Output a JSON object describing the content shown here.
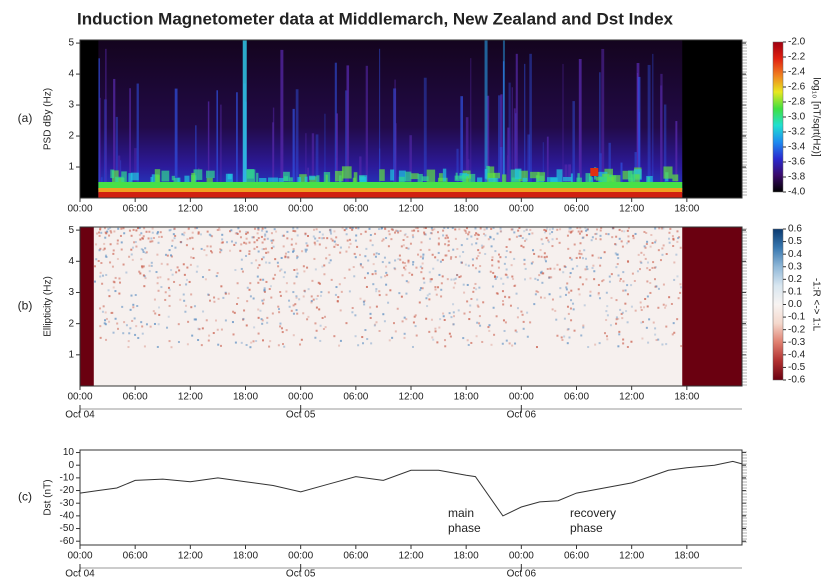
{
  "title": "Induction Magnetometer data at Middlemarch, New Zealand and Dst Index",
  "chart_data": [
    {
      "type": "spectrogram",
      "panel_label": "(a)",
      "ylabel": "PSD dBy (Hz)",
      "ylim": [
        0,
        5.1
      ],
      "yticks": [
        1,
        2,
        3,
        4,
        5
      ],
      "xlim": [
        0,
        72
      ],
      "xticks": [
        {
          "value": 0,
          "label": "00:00"
        },
        {
          "value": 6,
          "label": "06:00"
        },
        {
          "value": 12,
          "label": "12:00"
        },
        {
          "value": 18,
          "label": "18:00"
        },
        {
          "value": 24,
          "label": "00:00"
        },
        {
          "value": 30,
          "label": "06:00"
        },
        {
          "value": 36,
          "label": "12:00"
        },
        {
          "value": 42,
          "label": "18:00"
        },
        {
          "value": 48,
          "label": "00:00"
        },
        {
          "value": 54,
          "label": "06:00"
        },
        {
          "value": 60,
          "label": "12:00"
        },
        {
          "value": 66,
          "label": "18:00"
        }
      ],
      "colorbar": {
        "label": "log₁₀ [nT/sqrt(Hz)]",
        "lim": [
          -4,
          -2
        ],
        "colors": [
          "#000000",
          "#3a0a6a",
          "#2a2ad0",
          "#1e8cf0",
          "#20e0d0",
          "#40e040",
          "#e8e820",
          "#f08020",
          "#e02010",
          "#a00010"
        ],
        "ticks": [
          {
            "value": -2,
            "label": "-2.0"
          },
          -2.2,
          -2.4,
          -2.6,
          -2.8,
          {
            "value": -3,
            "label": "-3.0"
          },
          -3.2,
          -3.4,
          -3.6,
          -3.8,
          {
            "value": -4,
            "label": "-4.0"
          }
        ]
      }
    },
    {
      "type": "spectrogram",
      "panel_label": "(b)",
      "ylabel": "Ellipticity (Hz)",
      "ylim": [
        0,
        5.1
      ],
      "yticks": [
        1,
        2,
        3,
        4,
        5
      ],
      "xlim": [
        0,
        72
      ],
      "xticks": [
        {
          "value": 0,
          "label": "00:00"
        },
        {
          "value": 6,
          "label": "06:00"
        },
        {
          "value": 12,
          "label": "12:00"
        },
        {
          "value": 18,
          "label": "18:00"
        },
        {
          "value": 24,
          "label": "00:00"
        },
        {
          "value": 30,
          "label": "06:00"
        },
        {
          "value": 36,
          "label": "12:00"
        },
        {
          "value": 42,
          "label": "18:00"
        },
        {
          "value": 48,
          "label": "00:00"
        },
        {
          "value": 54,
          "label": "06:00"
        },
        {
          "value": 60,
          "label": "12:00"
        },
        {
          "value": 66,
          "label": "18:00"
        }
      ],
      "date_ticks": [
        {
          "value": 0,
          "label": "Oct 04"
        },
        {
          "value": 24,
          "label": "Oct 05"
        },
        {
          "value": 48,
          "label": "Oct 06"
        }
      ],
      "colorbar": {
        "label": "-1:R <-> 1:L",
        "lim": [
          -0.6,
          0.6
        ],
        "colors": [
          "#6a0010",
          "#b03030",
          "#e08070",
          "#f4d8cc",
          "#f8f4f2",
          "#d8e6f0",
          "#90b8d8",
          "#3878b0",
          "#0a3a70"
        ],
        "ticks": [
          0.6,
          0.5,
          0.4,
          0.3,
          0.2,
          0.1,
          {
            "value": 0,
            "label": "0.0"
          },
          -0.1,
          -0.2,
          -0.3,
          -0.4,
          -0.5,
          -0.6
        ]
      }
    },
    {
      "type": "line",
      "panel_label": "(c)",
      "ylabel": "Dst (nT)",
      "ylim": [
        -63,
        12
      ],
      "yticks": [
        10,
        0,
        -10,
        -20,
        -30,
        -40,
        -50,
        -60
      ],
      "xlim": [
        0,
        72
      ],
      "xticks": [
        {
          "value": 0,
          "label": "00:00"
        },
        {
          "value": 6,
          "label": "06:00"
        },
        {
          "value": 12,
          "label": "12:00"
        },
        {
          "value": 18,
          "label": "18:00"
        },
        {
          "value": 24,
          "label": "00:00"
        },
        {
          "value": 30,
          "label": "06:00"
        },
        {
          "value": 36,
          "label": "12:00"
        },
        {
          "value": 42,
          "label": "18:00"
        },
        {
          "value": 48,
          "label": "00:00"
        },
        {
          "value": 54,
          "label": "06:00"
        },
        {
          "value": 60,
          "label": "12:00"
        },
        {
          "value": 66,
          "label": "18:00"
        }
      ],
      "date_ticks": [
        {
          "value": 0,
          "label": "Oct 04"
        },
        {
          "value": 24,
          "label": "Oct 05"
        },
        {
          "value": 48,
          "label": "Oct 06"
        }
      ],
      "x": [
        0,
        2,
        4,
        6,
        9,
        12,
        15,
        18,
        21,
        24,
        27,
        30,
        33,
        36,
        39,
        42,
        43,
        46,
        48,
        50,
        52,
        54,
        57,
        60,
        62,
        64,
        66,
        69,
        71,
        72
      ],
      "series": [
        {
          "color": "#333333",
          "values": [
            -22,
            -20,
            -18,
            -12,
            -11,
            -13,
            -10,
            -13,
            -16,
            -21,
            -15,
            -9,
            -12,
            -4,
            -4,
            -8,
            -9,
            -40,
            -33,
            -29,
            -28,
            -22,
            -18,
            -14,
            -9,
            -4,
            -2,
            0,
            3,
            1
          ]
        }
      ],
      "annotations": [
        {
          "lines": [
            "main",
            "phase"
          ]
        },
        {
          "lines": [
            "recovery",
            "phase"
          ]
        }
      ]
    }
  ]
}
